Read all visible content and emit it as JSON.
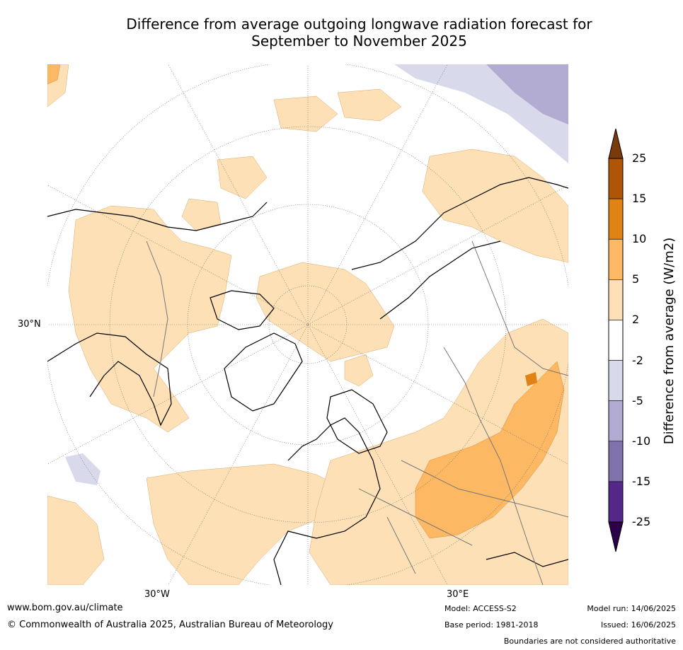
{
  "title": {
    "line1": "Difference from average outgoing longwave radiation forecast for",
    "line2": "September to November 2025"
  },
  "map": {
    "lat_labels": [
      "30°N"
    ],
    "lon_labels": [
      "30°W",
      "30°E"
    ]
  },
  "legend": {
    "title": "Difference from average (W/m2)",
    "ticks": [
      "25",
      "15",
      "10",
      "5",
      "2",
      "-2",
      "-5",
      "-10",
      "-15",
      "-25"
    ],
    "colors": [
      "#7a3b0a",
      "#b05406",
      "#e08214",
      "#fdb863",
      "#fee0b6",
      "#ffffff",
      "#d8daeb",
      "#b2abd2",
      "#8073ac",
      "#542788",
      "#2d004b"
    ]
  },
  "footer": {
    "website": "www.bom.gov.au/climate",
    "copyright": "© Commonwealth of Australia 2025, Australian Bureau of Meteorology",
    "model": "Model: ACCESS-S2",
    "base_period": "Base period: 1981-2018",
    "model_run": "Model run: 14/06/2025",
    "issued": "Issued: 16/06/2025",
    "disclaimer": "Boundaries are not considered authoritative"
  }
}
